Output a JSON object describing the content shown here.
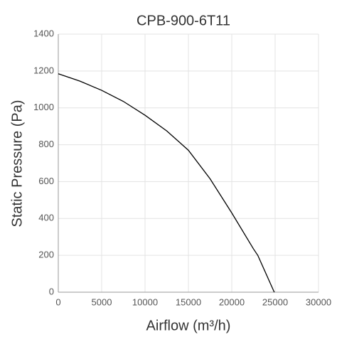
{
  "chart_data": {
    "type": "line",
    "title": "CPB-900-6T11",
    "xlabel": "Airflow (m³/h)",
    "ylabel": "Static Pressure (Pa)",
    "x": [
      0,
      2500,
      5000,
      7500,
      10000,
      12500,
      15000,
      17500,
      20000,
      22500,
      23000,
      24900
    ],
    "values": [
      1185,
      1145,
      1095,
      1035,
      960,
      875,
      770,
      615,
      430,
      235,
      200,
      0
    ],
    "color": "#000000",
    "xlim": [
      0,
      30000
    ],
    "xticks": [
      0,
      5000,
      10000,
      15000,
      20000,
      25000,
      30000
    ],
    "ylim": [
      0,
      1400
    ],
    "yticks": [
      0,
      200,
      400,
      600,
      800,
      1000,
      1200,
      1400
    ],
    "grid": true
  }
}
